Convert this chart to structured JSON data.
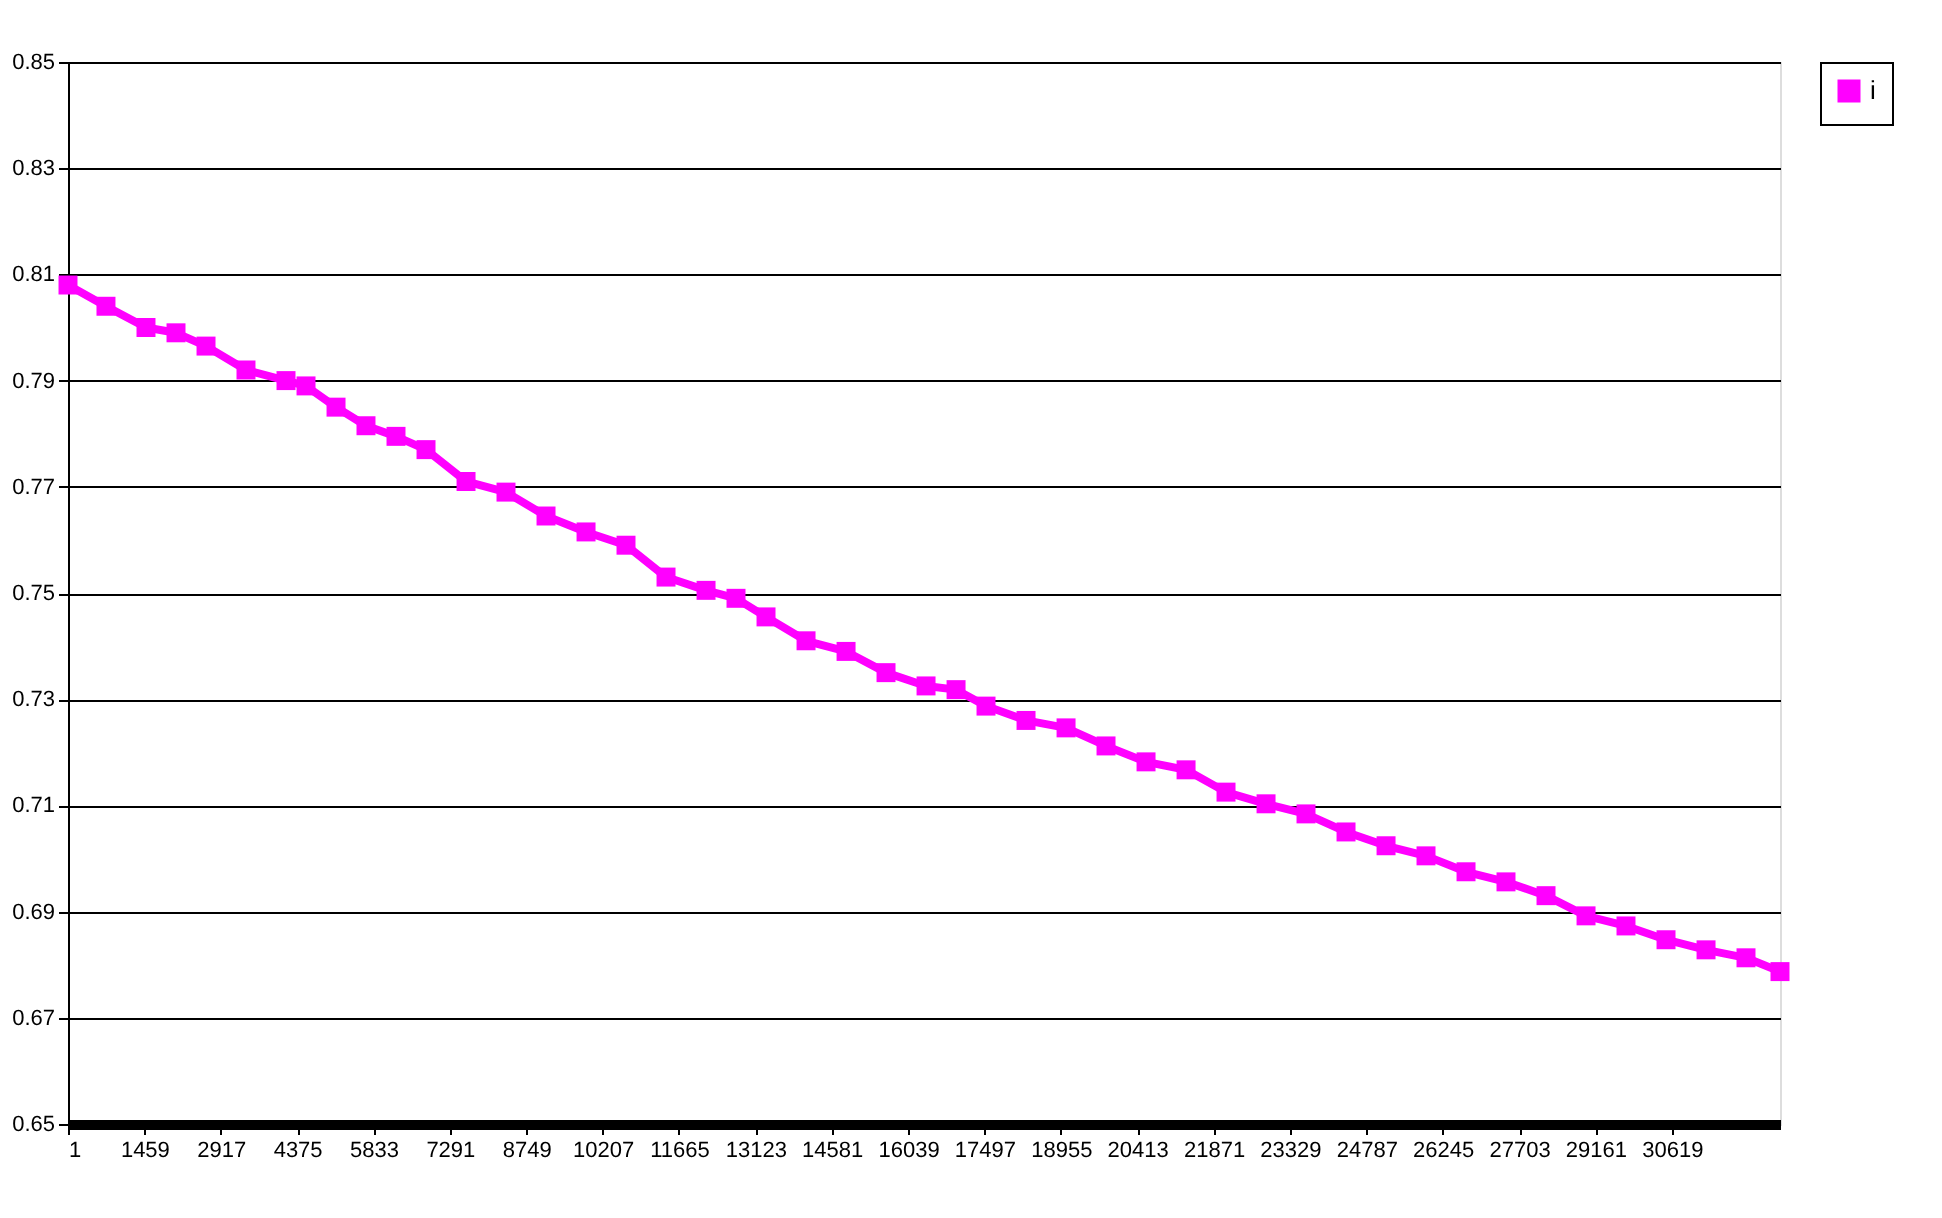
{
  "chart_data": {
    "type": "line",
    "xlim": [
      1,
      32685
    ],
    "xticks": [
      1,
      1459,
      2917,
      4375,
      5833,
      7291,
      8749,
      10207,
      11665,
      13123,
      14581,
      16039,
      17497,
      18955,
      20413,
      21871,
      23329,
      24787,
      26245,
      27703,
      29161,
      30619
    ],
    "ylim": [
      0.65,
      0.85
    ],
    "yticks": [
      0.65,
      0.67,
      0.69,
      0.71,
      0.73,
      0.75,
      0.77,
      0.79,
      0.81,
      0.83,
      0.85
    ],
    "grid": "y",
    "legend": "right",
    "marker": "square",
    "line_style": "solid",
    "series": [
      {
        "name": "i",
        "color": "#ff00ff",
        "x": [
          1,
          726,
          1490,
          2063,
          2636,
          3399,
          4163,
          4545,
          5118,
          5690,
          6263,
          6836,
          7600,
          8363,
          9127,
          9891,
          10654,
          11418,
          12182,
          12754,
          13327,
          14091,
          14855,
          15618,
          16382,
          16955,
          17527,
          18291,
          19055,
          19818,
          20582,
          21346,
          22109,
          22873,
          23636,
          24400,
          25164,
          25927,
          26691,
          27454,
          28218,
          28982,
          29745,
          30509,
          31273,
          32036,
          32685
        ],
        "values": [
          0.808,
          0.804,
          0.8,
          0.799,
          0.7965,
          0.792,
          0.79,
          0.789,
          0.785,
          0.7815,
          0.7795,
          0.777,
          0.771,
          0.769,
          0.7645,
          0.7615,
          0.759,
          0.753,
          0.7505,
          0.749,
          0.7455,
          0.741,
          0.739,
          0.735,
          0.7325,
          0.7318,
          0.7287,
          0.726,
          0.7246,
          0.7212,
          0.7182,
          0.7167,
          0.7125,
          0.7103,
          0.7084,
          0.705,
          0.7024,
          0.7005,
          0.6975,
          0.6956,
          0.693,
          0.6892,
          0.6873,
          0.6847,
          0.6828,
          0.6813,
          0.6787
        ]
      }
    ]
  }
}
